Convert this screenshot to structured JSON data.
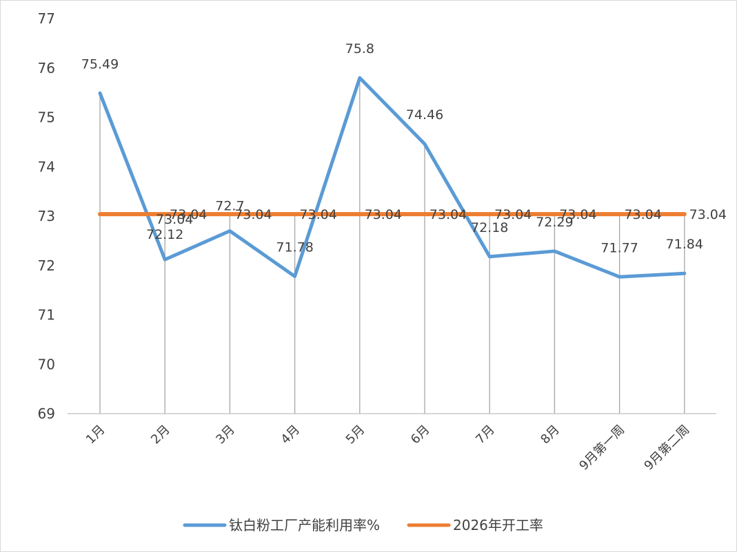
{
  "chart_data": {
    "type": "line",
    "title": "",
    "xlabel": "",
    "ylabel": "",
    "ylim": [
      69,
      77
    ],
    "yticks": [
      "69",
      "70",
      "71",
      "72",
      "73",
      "74",
      "75",
      "76",
      "77"
    ],
    "categories": [
      "1月",
      "2月",
      "3月",
      "4月",
      "5月",
      "6月",
      "7月",
      "8月",
      "9月第一周",
      "9月第二周"
    ],
    "grid": "vertical lines at category positions",
    "legend_position": "bottom",
    "series": [
      {
        "name": "钛白粉工厂产能利用率%",
        "color": "#5b9bd5",
        "values": [
          75.49,
          72.12,
          72.7,
          71.78,
          75.8,
          74.46,
          72.18,
          72.29,
          71.77,
          71.84
        ],
        "labels": [
          "75.49",
          "72.12",
          "72.7",
          "71.78",
          "75.8",
          "74.46",
          "72.18",
          "72.29",
          "71.77",
          "71.84"
        ]
      },
      {
        "name": "2026年开工率",
        "color": "#ed7d31",
        "values": [
          73.04,
          73.04,
          73.04,
          73.04,
          73.04,
          73.04,
          73.04,
          73.04,
          73.04,
          73.04
        ],
        "labels": [
          "73.04",
          "73.04",
          "73.04",
          "73.04",
          "73.04",
          "73.04",
          "73.04",
          "73.04",
          "73.04",
          "73.04"
        ]
      }
    ]
  }
}
